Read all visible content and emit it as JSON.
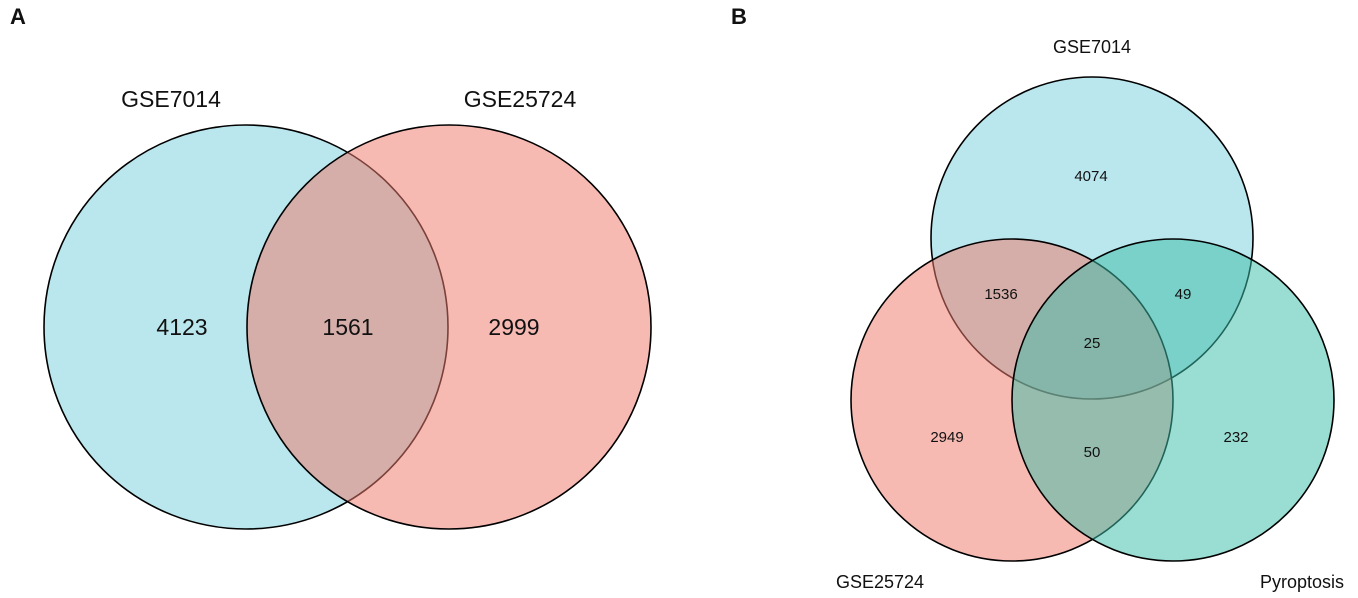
{
  "panels": {
    "a": {
      "letter": "A",
      "sets": [
        {
          "label": "GSE7014",
          "color": "#67c7d6"
        },
        {
          "label": "GSE25724",
          "color": "#ee7b6e"
        }
      ],
      "counts": {
        "only_first": "4123",
        "both": "1561",
        "only_second": "2999"
      }
    },
    "b": {
      "letter": "B",
      "sets": [
        {
          "label": "GSE7014",
          "color": "#67c7d6"
        },
        {
          "label": "GSE25724",
          "color": "#ee7b6e"
        },
        {
          "label": "Pyroptosis",
          "color": "#3dbda8"
        }
      ],
      "counts": {
        "gse7014_only": "4074",
        "gse7014_gse25724": "1536",
        "gse7014_pyroptosis": "49",
        "all_three": "25",
        "gse25724_only": "2949",
        "gse25724_pyroptosis": "50",
        "pyroptosis_only": "232"
      }
    }
  }
}
